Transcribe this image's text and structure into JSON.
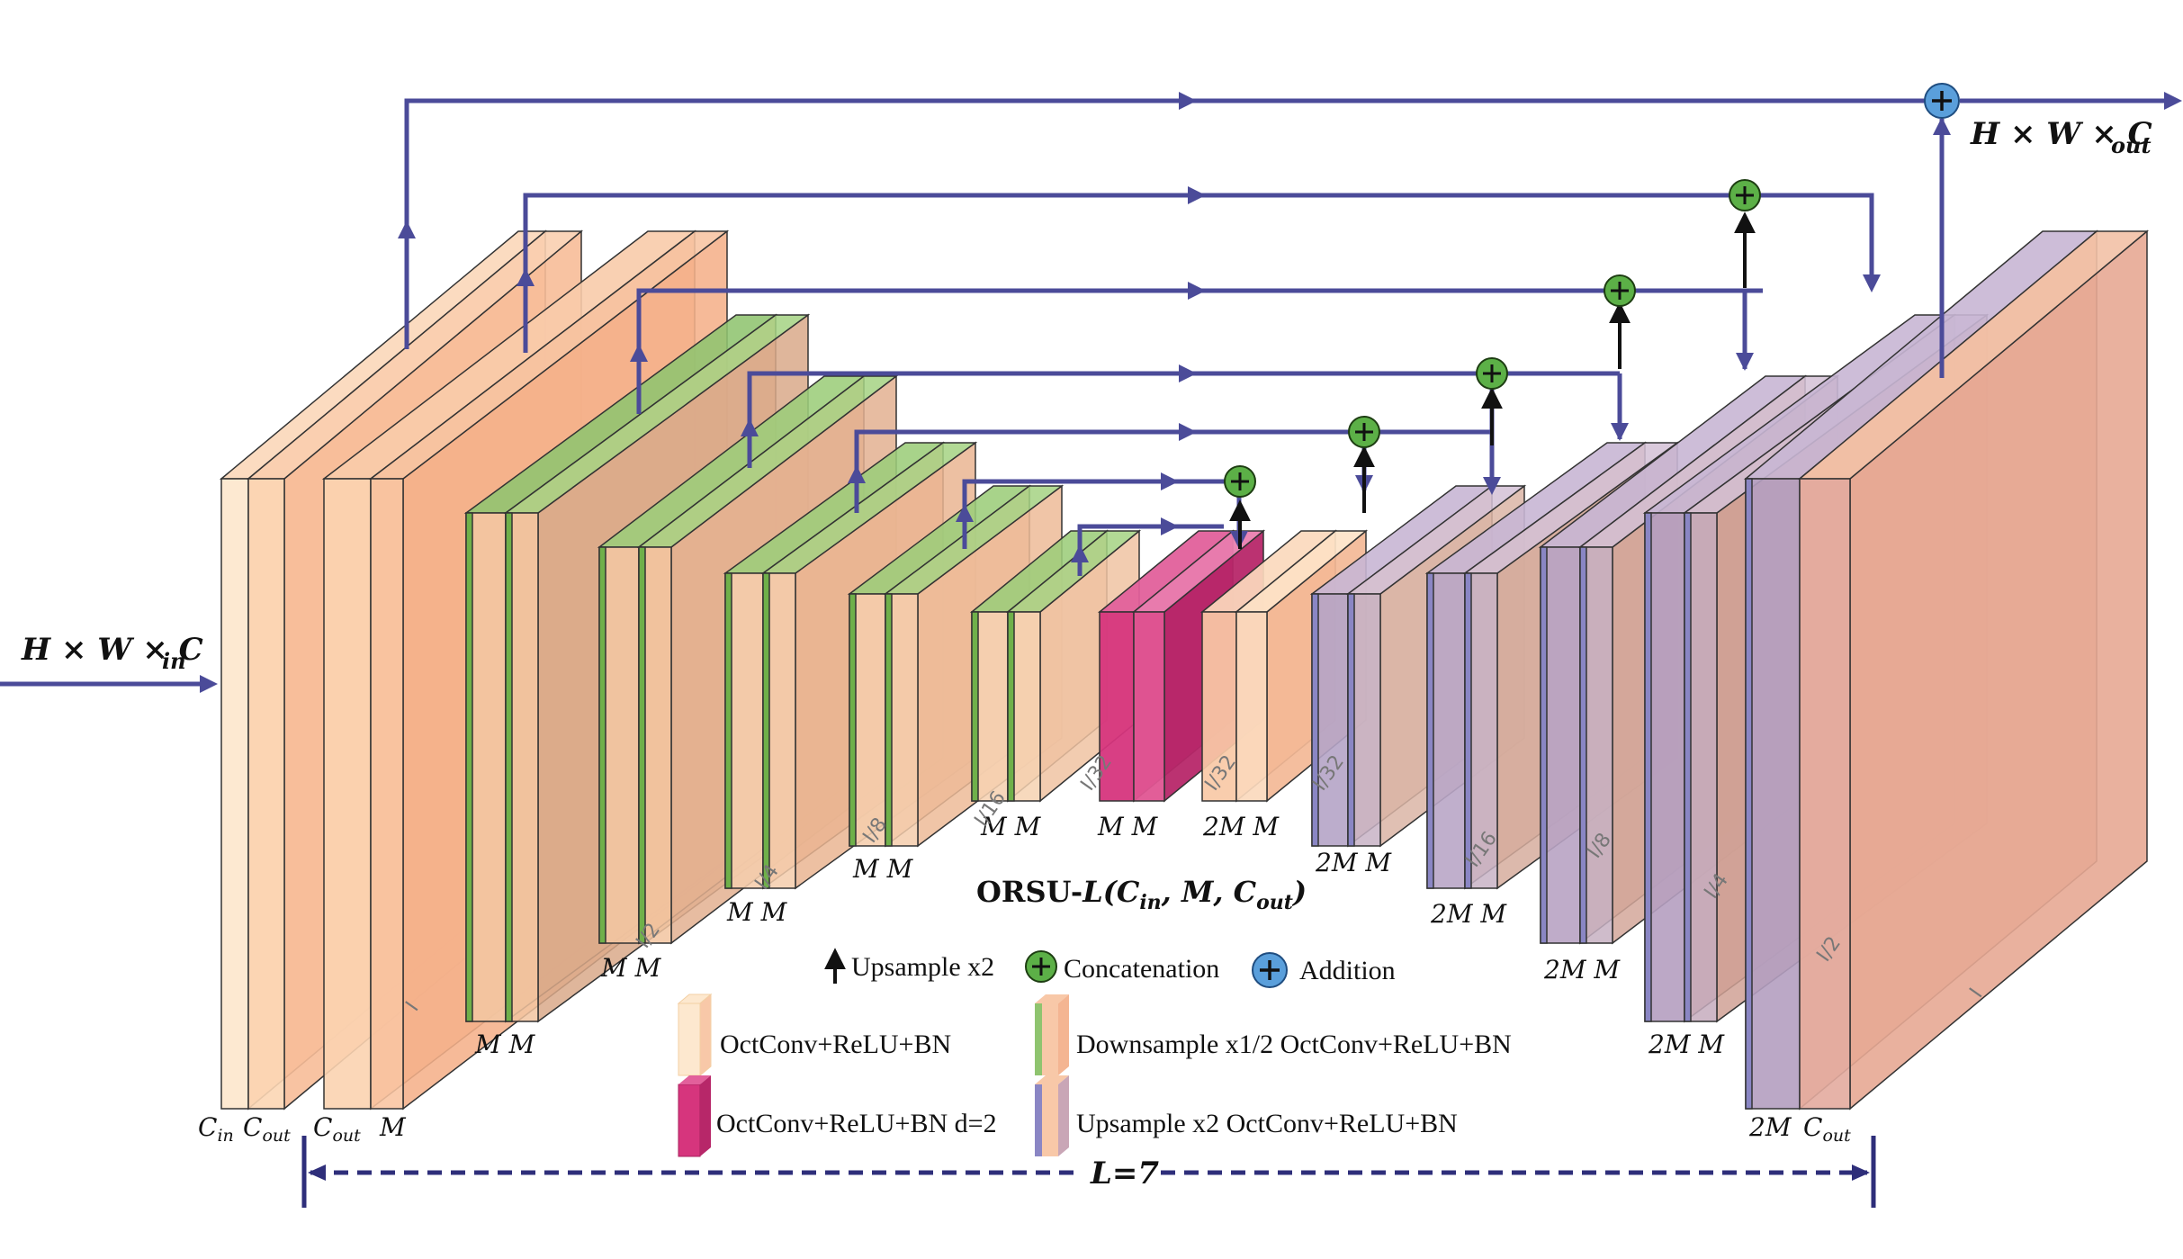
{
  "colors": {
    "line": "#4b4b99",
    "peach_face": "#f8bfa0",
    "peach_light": "#fde8cf",
    "green": "#8fc46f",
    "pink": "#d6357d",
    "purple": "#8a86c4",
    "concat": "#5cb047",
    "add": "#5a9fdb"
  },
  "labels": {
    "input": "H × W × C",
    "input_sub": "in",
    "output": "H × W × C",
    "output_sub": "out",
    "title_prefix": "ORSU-",
    "title_L": "L",
    "title_args": "(C",
    "title_in": "in",
    "title_mid": ", M, C",
    "title_out": "out",
    "title_close": ")",
    "L_value": "L=7"
  },
  "block_labels": {
    "cin": "C",
    "cin_sub": "in",
    "cout1": "C",
    "cout1_sub": "out",
    "cout2": "C",
    "cout2_sub": "out",
    "m_first": "M",
    "mm": "M M",
    "two_mm": "2M M",
    "two_m_last": "2M",
    "cout3": "C",
    "cout3_sub": "out"
  },
  "scale_labels": [
    "I",
    "I/2",
    "I/4",
    "I/8",
    "I/16",
    "I/32",
    "I/32",
    "I/32",
    "I/16",
    "I/8",
    "I/4",
    "I/2",
    "I"
  ],
  "legend": {
    "upsample": "Upsample x2",
    "concatenation": "Concatenation",
    "addition": "Addition",
    "octconv": "OctConv+ReLU+BN",
    "downsample": "Downsample x1/2 OctConv+ReLU+BN",
    "dilated": "OctConv+ReLU+BN d=2",
    "upsample_conv": "Upsample x2 OctConv+ReLU+BN"
  },
  "icons": [
    "upsample-arrow-icon",
    "concatenation-icon",
    "addition-icon"
  ]
}
